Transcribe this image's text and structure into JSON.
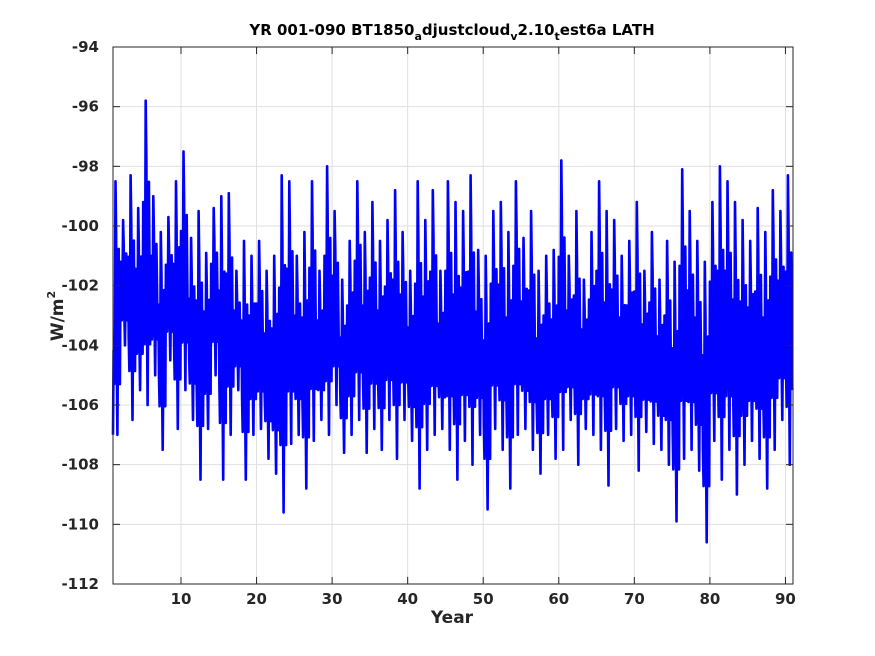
{
  "chart_data": {
    "type": "line",
    "title": {
      "prefix": "YR 001-090 BT1850",
      "sub1": "a",
      "part2": "djustcloud",
      "sub2": "v",
      "part3": "2.10",
      "sub3": "t",
      "part4": "est6a LATH"
    },
    "xlabel": "Year",
    "ylabel": {
      "base": "W/m",
      "sup": "2"
    },
    "xlim": [
      1,
      91
    ],
    "ylim": [
      -112,
      -94
    ],
    "x_ticks": [
      10,
      20,
      30,
      40,
      50,
      60,
      70,
      80,
      90
    ],
    "y_ticks": [
      -112,
      -110,
      -108,
      -106,
      -104,
      -102,
      -100,
      -98,
      -96,
      -94
    ],
    "grid": true,
    "line_color": "#0000ff",
    "series": [
      {
        "x_start": 1,
        "x_step_years": 0.08333,
        "seasonal_cycle": [
          -102.0,
          -104.5,
          -105.5,
          -103.8,
          -99.5,
          -101.0,
          -105.0,
          -107.0,
          -104.0,
          -101.5,
          -103.5,
          -105.5
        ],
        "annual_peak": [
          -98.5,
          -99.8,
          -98.3,
          -99.4,
          -95.8,
          -99.0,
          -100.2,
          -99.7,
          -98.5,
          -97.5,
          -100.4,
          -99.5,
          -100.9,
          -99.4,
          -99.0,
          -98.9,
          -101.5,
          -100.5,
          -101.0,
          -100.5,
          -101.5,
          -101.0,
          -98.3,
          -98.5,
          -101.0,
          -100.2,
          -98.5,
          -101.5,
          -98.0,
          -99.5,
          -101.8,
          -100.5,
          -98.5,
          -100.2,
          -99.2,
          -100.5,
          -99.8,
          -98.8,
          -100.2,
          -101.5,
          -98.5,
          -99.8,
          -98.8,
          -101.5,
          -98.5,
          -99.2,
          -99.5,
          -98.3,
          -100.8,
          -101.0,
          -99.5,
          -99.2,
          -100.2,
          -98.5,
          -100.4,
          -99.5,
          -101.5,
          -101.0,
          -100.8,
          -97.8,
          -101.0,
          -99.5,
          -101.8,
          -100.2,
          -98.5,
          -99.5,
          -99.8,
          -101.0,
          -100.5,
          -99.2,
          -101.5,
          -100.2,
          -101.8,
          -100.5,
          -101.2,
          -98.1,
          -99.5,
          -100.5,
          -101.2,
          -99.2,
          -98.0,
          -98.5,
          -99.2,
          -99.8,
          -100.5,
          -99.4,
          -100.2,
          -98.8,
          -99.5,
          -98.3
        ],
        "annual_trough": [
          -107.0,
          -104.0,
          -106.5,
          -105.5,
          -106.0,
          -105.0,
          -107.5,
          -104.5,
          -106.8,
          -105.5,
          -106.5,
          -108.5,
          -106.8,
          -105.0,
          -108.5,
          -107.0,
          -105.5,
          -108.5,
          -107.0,
          -106.8,
          -107.8,
          -108.3,
          -109.6,
          -107.3,
          -107.0,
          -108.8,
          -107.2,
          -106.5,
          -107.0,
          -106.0,
          -107.6,
          -107.0,
          -106.5,
          -107.6,
          -106.8,
          -107.5,
          -106.5,
          -107.8,
          -106.5,
          -107.2,
          -108.8,
          -107.5,
          -107.0,
          -106.8,
          -107.5,
          -108.5,
          -107.2,
          -108.0,
          -107.0,
          -109.5,
          -106.8,
          -107.5,
          -108.8,
          -107.0,
          -106.8,
          -107.5,
          -108.3,
          -107.0,
          -107.8,
          -107.5,
          -106.5,
          -108.0,
          -106.8,
          -107.0,
          -107.5,
          -108.7,
          -106.8,
          -107.2,
          -107.0,
          -108.2,
          -106.9,
          -107.3,
          -107.5,
          -108.0,
          -109.9,
          -107.8,
          -107.5,
          -108.2,
          -110.6,
          -107.2,
          -108.5,
          -107.5,
          -109.0,
          -108.0,
          -107.2,
          -107.8,
          -108.8,
          -107.5,
          -106.5,
          -108.0
        ],
        "start_value": -107.0,
        "end_value": -105.5
      }
    ]
  }
}
